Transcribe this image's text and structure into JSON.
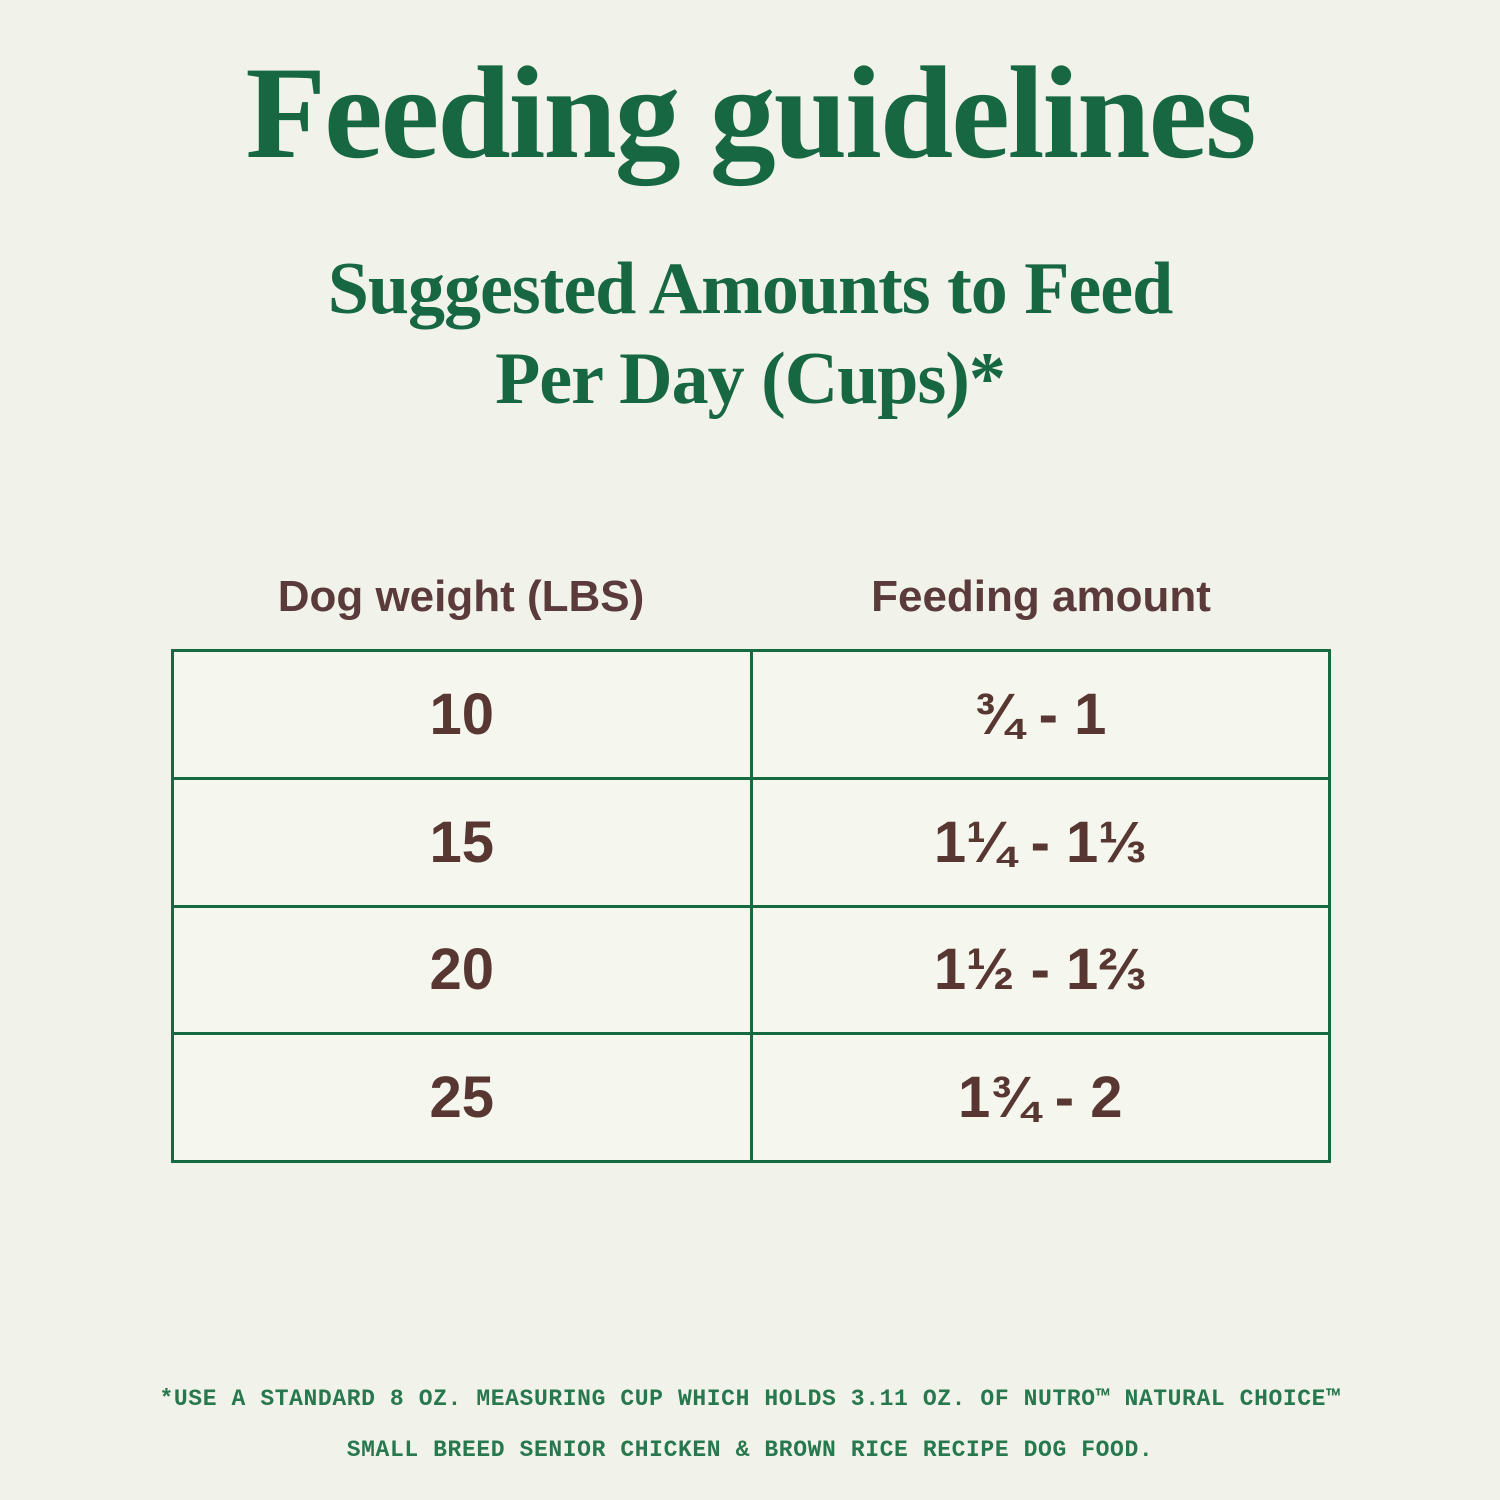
{
  "chart_data": {
    "type": "table",
    "title": "Feeding guidelines",
    "subtitle": "Suggested Amounts to Feed Per Day (Cups)*",
    "columns": [
      "Dog weight (LBS)",
      "Feeding amount"
    ],
    "rows": [
      [
        "10",
        "¾ - 1"
      ],
      [
        "15",
        "1¼ - 1⅓"
      ],
      [
        "20",
        "1½ - 1⅔"
      ],
      [
        "25",
        "1¾ - 2"
      ]
    ],
    "units": "cups per day",
    "footnote": "*USE A STANDARD 8 OZ. MEASURING CUP WHICH HOLDS 3.11 OZ. OF NUTRO™ NATURAL CHOICE™ SMALL BREED SENIOR CHICKEN & BROWN RICE RECIPE DOG FOOD.",
    "layout_hints": {
      "grid": "on",
      "border_color": "#166a42",
      "rows_count": 4,
      "columns_count": 2
    }
  },
  "title": "Feeding guidelines",
  "subtitle": {
    "line1": "Suggested Amounts to Feed",
    "line2": "Per Day (Cups)*"
  },
  "footnote": {
    "line1": "*USE A STANDARD 8 OZ. MEASURING CUP WHICH HOLDS 3.11 OZ. OF NUTRO™ NATURAL CHOICE™",
    "line2": "SMALL BREED SENIOR CHICKEN & BROWN RICE RECIPE DOG FOOD."
  },
  "colors": {
    "background": "#f1f2e9",
    "heading_green": "#176842",
    "table_border_green": "#166a42",
    "footnote_green": "#27784e",
    "data_brown": "#583732",
    "cell_background": "#f5f6ee"
  }
}
